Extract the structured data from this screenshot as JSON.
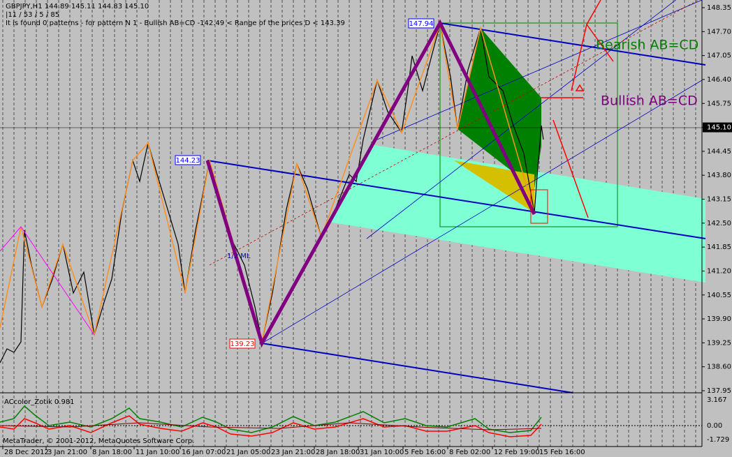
{
  "header": {
    "symbol_line": "GBPJPY,H1  144.89 145.11 144.83 145.10",
    "counter_line": "|11 / 53 / 5 / 85",
    "pattern_line": "It is found 0 patterns - for pattern N 1 - Bullish AB=CD  -142.49 < Range of the prices D < 143.39"
  },
  "price_axis": [
    "148.35",
    "147.70",
    "147.05",
    "146.40",
    "145.75",
    "145.10",
    "144.45",
    "143.80",
    "143.15",
    "142.50",
    "141.85",
    "141.20",
    "140.55",
    "139.90",
    "139.25",
    "138.60",
    "137.95"
  ],
  "time_axis": [
    "28 Dec 2012",
    "3 Jan 21:00",
    "8 Jan 18:00",
    "11 Jan 10:00",
    "16 Jan 07:00",
    "21 Jan 05:00",
    "23 Jan 21:00",
    "28 Jan 18:00",
    "31 Jan 10:00",
    "5 Feb 16:00",
    "8 Feb 02:00",
    "12 Feb 19:00",
    "15 Feb 16:00"
  ],
  "annotations": {
    "point_high": "147.94",
    "point_mid": "144.23",
    "point_low": "139.23",
    "bearish": "Bearish AB=CD",
    "bullish": "Bullish AB=CD",
    "median_line": "1/2 ML"
  },
  "indicator": {
    "name": "ACcolor_Zotik 0.981",
    "axis": [
      "3.167",
      "0.00",
      "-1.729"
    ]
  },
  "footer": "MetaTrader, © 2001-2012, MetaQuotes Software Corp."
}
